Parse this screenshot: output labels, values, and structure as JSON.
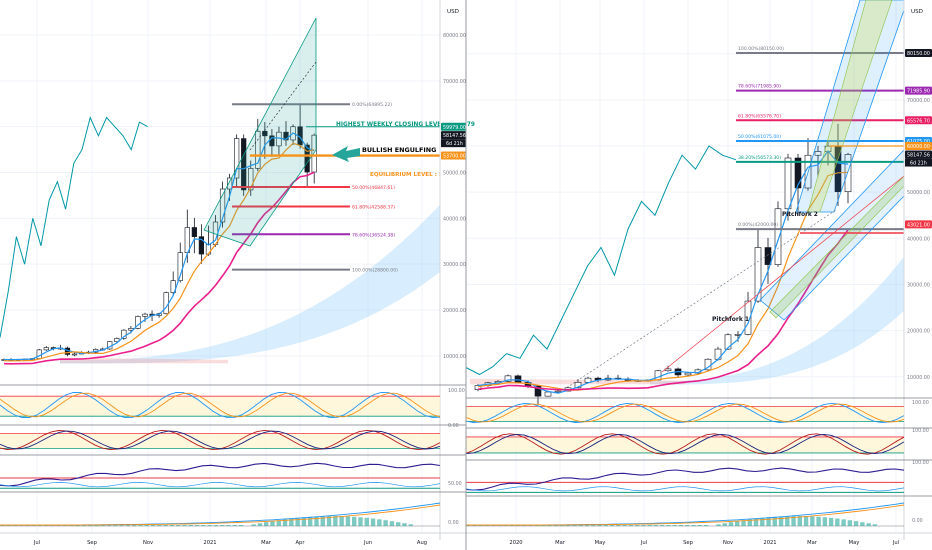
{
  "chart_data": [
    {
      "type": "candlestick",
      "name_context": "Left panel — BTC/USD weekly",
      "currency": "USD",
      "y_axis_ticks": [
        10000,
        20000,
        30000,
        40000,
        50000,
        60000,
        70000,
        80000
      ],
      "y_axis_tick_labels": [
        "10000.00",
        "20000.00",
        "30000.00",
        "40000.00",
        "50000.00",
        "60000.00",
        "70000.00",
        "80000.00"
      ],
      "x_axis_labels": [
        "Jul",
        "Sep",
        "Nov",
        "2021",
        "Mar",
        "Apr",
        "Jun",
        "Aug"
      ],
      "fib_levels": [
        {
          "label": "0.00%(64895.22)",
          "value": 64895.22,
          "color": "#787b86"
        },
        {
          "label": "50.00%(46847.61)",
          "value": 46847.61,
          "color": "#f23645"
        },
        {
          "label": "61.80%(42588.37)",
          "value": 42588.37,
          "color": "#f23645"
        },
        {
          "label": "78.60%(36524.38)",
          "value": 36524.38,
          "color": "#9c27b0"
        },
        {
          "label": "100.00%(28800.00)",
          "value": 28800,
          "color": "#787b86"
        }
      ],
      "annotations": [
        {
          "text": "HIGHEST WEEKLY CLOSING LEVEL  @ 59979",
          "color": "#089981",
          "value": 59979
        },
        {
          "text": "BULLISH ENGULFING",
          "color": "#000000"
        },
        {
          "text": "EQUILIBRIUM LEVEL : 53700",
          "color": "#f7931a",
          "value": 53700
        }
      ],
      "price_labels": [
        {
          "text": "59979.00",
          "color": "#089981",
          "value": 59979
        },
        {
          "text": "58147.56",
          "color": "#ffffff",
          "value": 58147.56
        },
        {
          "text": "6d 21h",
          "color": "#ffffff"
        },
        {
          "text": "53700.00",
          "color": "#f7931a",
          "value": 53700
        }
      ],
      "indicator_scales": [
        {
          "label": "100.00"
        },
        {
          "label": "0.00"
        },
        {
          "label": "50.00"
        },
        {
          "label": "0.00"
        }
      ],
      "candles": [
        {
          "o": 9100,
          "h": 9400,
          "l": 8900,
          "c": 9200
        },
        {
          "o": 9200,
          "h": 9500,
          "l": 9000,
          "c": 9150
        },
        {
          "o": 9150,
          "h": 9300,
          "l": 8900,
          "c": 9250
        },
        {
          "o": 9250,
          "h": 9400,
          "l": 9100,
          "c": 9300
        },
        {
          "o": 9300,
          "h": 9500,
          "l": 9200,
          "c": 9400
        },
        {
          "o": 9400,
          "h": 11500,
          "l": 9300,
          "c": 11300
        },
        {
          "o": 11300,
          "h": 12100,
          "l": 11100,
          "c": 11800
        },
        {
          "o": 11800,
          "h": 12000,
          "l": 11200,
          "c": 11600
        },
        {
          "o": 11600,
          "h": 12400,
          "l": 11300,
          "c": 11700
        },
        {
          "o": 11700,
          "h": 12000,
          "l": 9900,
          "c": 10300
        },
        {
          "o": 10300,
          "h": 10900,
          "l": 9900,
          "c": 10400
        },
        {
          "o": 10400,
          "h": 11000,
          "l": 10300,
          "c": 10700
        },
        {
          "o": 10700,
          "h": 11100,
          "l": 10400,
          "c": 10800
        },
        {
          "o": 10800,
          "h": 11600,
          "l": 10600,
          "c": 11400
        },
        {
          "o": 11400,
          "h": 11800,
          "l": 11200,
          "c": 11500
        },
        {
          "o": 11500,
          "h": 13200,
          "l": 11300,
          "c": 13100
        },
        {
          "o": 13100,
          "h": 14000,
          "l": 12800,
          "c": 13800
        },
        {
          "o": 13800,
          "h": 15800,
          "l": 13500,
          "c": 15600
        },
        {
          "o": 15600,
          "h": 16500,
          "l": 14900,
          "c": 16000
        },
        {
          "o": 16000,
          "h": 18800,
          "l": 15800,
          "c": 18600
        },
        {
          "o": 18600,
          "h": 19400,
          "l": 17400,
          "c": 19100
        },
        {
          "o": 19100,
          "h": 19900,
          "l": 17600,
          "c": 18800
        },
        {
          "o": 18800,
          "h": 19400,
          "l": 18300,
          "c": 19200
        },
        {
          "o": 19200,
          "h": 24000,
          "l": 19000,
          "c": 23800
        },
        {
          "o": 23800,
          "h": 28400,
          "l": 23200,
          "c": 26400
        },
        {
          "o": 26400,
          "h": 34700,
          "l": 26000,
          "c": 32500
        },
        {
          "o": 32500,
          "h": 41900,
          "l": 30300,
          "c": 38000
        },
        {
          "o": 38000,
          "h": 40100,
          "l": 32400,
          "c": 36000
        },
        {
          "o": 36000,
          "h": 38700,
          "l": 30100,
          "c": 32200
        },
        {
          "o": 32200,
          "h": 38400,
          "l": 31800,
          "c": 34300
        },
        {
          "o": 34300,
          "h": 40700,
          "l": 33800,
          "c": 39200
        },
        {
          "o": 39200,
          "h": 48000,
          "l": 38000,
          "c": 46400
        },
        {
          "o": 46400,
          "h": 49700,
          "l": 43800,
          "c": 48800
        },
        {
          "o": 48800,
          "h": 58300,
          "l": 47000,
          "c": 57400
        },
        {
          "o": 57400,
          "h": 58300,
          "l": 44900,
          "c": 46200
        },
        {
          "o": 46200,
          "h": 52600,
          "l": 44900,
          "c": 50900
        },
        {
          "o": 50900,
          "h": 61700,
          "l": 50300,
          "c": 59000
        },
        {
          "o": 59000,
          "h": 61000,
          "l": 53000,
          "c": 58000
        },
        {
          "o": 58000,
          "h": 59500,
          "l": 53400,
          "c": 55800
        },
        {
          "o": 55800,
          "h": 60000,
          "l": 53800,
          "c": 58800
        },
        {
          "o": 58800,
          "h": 61200,
          "l": 55800,
          "c": 57100
        },
        {
          "o": 57100,
          "h": 60500,
          "l": 56000,
          "c": 59979
        },
        {
          "o": 59979,
          "h": 64800,
          "l": 55200,
          "c": 56000
        },
        {
          "o": 56000,
          "h": 56500,
          "l": 47000,
          "c": 50100
        },
        {
          "o": 50100,
          "h": 58500,
          "l": 47600,
          "c": 58147.56
        }
      ]
    },
    {
      "type": "candlestick",
      "name_context": "Right panel — BTC/USD 2-week",
      "currency": "USD",
      "y_axis_ticks": [
        10000,
        20000,
        30000,
        40000,
        50000,
        60000,
        70000,
        80000
      ],
      "y_axis_tick_labels": [
        "10000.00",
        "20000.00",
        "30000.00",
        "40000.00",
        "50000.00",
        "60000.00",
        "70000.00",
        "80000.00"
      ],
      "x_axis_labels": [
        "2020",
        "Mar",
        "May",
        "Jul",
        "Sep",
        "Nov",
        "2021",
        "Mar",
        "May",
        "Jul"
      ],
      "fib_levels": [
        {
          "label": "100.00%(80150.00)",
          "value": 80150,
          "color": "#787b86"
        },
        {
          "label": "78.60%(71985.90)",
          "value": 71985.9,
          "color": "#9c27b0"
        },
        {
          "label": "61.80%(65576.70)",
          "value": 65576.7,
          "color": "#e91e63"
        },
        {
          "label": "50.00%(61075.00)",
          "value": 61075,
          "color": "#2196f3"
        },
        {
          "label": "38.20%(56573.30)",
          "value": 56573.3,
          "color": "#089981"
        },
        {
          "label": "0.00%(42000.00)",
          "value": 42000,
          "color": "#787b86"
        }
      ],
      "annotations": [
        {
          "text": "Pitchfork 2"
        },
        {
          "text": "Pitchfork 1"
        }
      ],
      "price_labels": [
        {
          "text": "80150.00",
          "color": "#131722",
          "value": 80150
        },
        {
          "text": "71985.90",
          "color": "#9c27b0",
          "value": 71985.9
        },
        {
          "text": "65576.70",
          "color": "#e91e63",
          "value": 65576.7
        },
        {
          "text": "61075.00",
          "color": "#2196f3",
          "value": 61075
        },
        {
          "text": "60000.00",
          "color": "#f7931a",
          "value": 60000
        },
        {
          "text": "58147.56",
          "color": "#ffffff",
          "value": 58147.56
        },
        {
          "text": "6d 21h",
          "color": "#ffffff"
        },
        {
          "text": "43021.00",
          "color": "#f23645",
          "value": 43021
        }
      ],
      "indicator_scales": [
        {
          "label": "100.00"
        },
        {
          "label": "100.00"
        },
        {
          "label": "100.00"
        },
        {
          "label": "0.00"
        }
      ],
      "candles": [
        {
          "o": 7200,
          "h": 8400,
          "l": 6900,
          "c": 8100
        },
        {
          "o": 8100,
          "h": 8900,
          "l": 7800,
          "c": 8700
        },
        {
          "o": 8700,
          "h": 9300,
          "l": 8400,
          "c": 9000
        },
        {
          "o": 9000,
          "h": 10500,
          "l": 8800,
          "c": 10200
        },
        {
          "o": 10200,
          "h": 10500,
          "l": 8600,
          "c": 8800
        },
        {
          "o": 8800,
          "h": 9200,
          "l": 7600,
          "c": 8000
        },
        {
          "o": 8000,
          "h": 8100,
          "l": 3900,
          "c": 5800
        },
        {
          "o": 5800,
          "h": 7000,
          "l": 5700,
          "c": 6700
        },
        {
          "o": 6700,
          "h": 7300,
          "l": 6500,
          "c": 6900
        },
        {
          "o": 6900,
          "h": 7800,
          "l": 6800,
          "c": 7600
        },
        {
          "o": 7600,
          "h": 9500,
          "l": 7500,
          "c": 8800
        },
        {
          "o": 8800,
          "h": 10000,
          "l": 8600,
          "c": 9700
        },
        {
          "o": 9700,
          "h": 10000,
          "l": 8800,
          "c": 9300
        },
        {
          "o": 9300,
          "h": 10400,
          "l": 9100,
          "c": 9700
        },
        {
          "o": 9700,
          "h": 10400,
          "l": 9300,
          "c": 9500
        },
        {
          "o": 9500,
          "h": 9900,
          "l": 8900,
          "c": 9200
        },
        {
          "o": 9200,
          "h": 9500,
          "l": 8900,
          "c": 9100
        },
        {
          "o": 9100,
          "h": 9400,
          "l": 8900,
          "c": 9300
        },
        {
          "o": 9300,
          "h": 11500,
          "l": 9200,
          "c": 11300
        },
        {
          "o": 11300,
          "h": 12400,
          "l": 11100,
          "c": 11700
        },
        {
          "o": 11700,
          "h": 12000,
          "l": 9900,
          "c": 10400
        },
        {
          "o": 10400,
          "h": 11100,
          "l": 10200,
          "c": 10800
        },
        {
          "o": 10800,
          "h": 11800,
          "l": 10600,
          "c": 11500
        },
        {
          "o": 11500,
          "h": 14000,
          "l": 11300,
          "c": 13800
        },
        {
          "o": 13800,
          "h": 16500,
          "l": 13500,
          "c": 16000
        },
        {
          "o": 16000,
          "h": 19400,
          "l": 15800,
          "c": 19100
        },
        {
          "o": 19100,
          "h": 19900,
          "l": 17600,
          "c": 19200
        },
        {
          "o": 19200,
          "h": 28400,
          "l": 19000,
          "c": 26400
        },
        {
          "o": 26400,
          "h": 41900,
          "l": 26000,
          "c": 38000
        },
        {
          "o": 38000,
          "h": 40100,
          "l": 30100,
          "c": 34300
        },
        {
          "o": 34300,
          "h": 48000,
          "l": 33800,
          "c": 46400
        },
        {
          "o": 46400,
          "h": 58300,
          "l": 43800,
          "c": 57400
        },
        {
          "o": 57400,
          "h": 58300,
          "l": 44900,
          "c": 50900
        },
        {
          "o": 50900,
          "h": 61700,
          "l": 50300,
          "c": 58000
        },
        {
          "o": 58000,
          "h": 60000,
          "l": 53400,
          "c": 58800
        },
        {
          "o": 58800,
          "h": 61200,
          "l": 55800,
          "c": 59979
        },
        {
          "o": 59979,
          "h": 64800,
          "l": 47000,
          "c": 50100
        },
        {
          "o": 50100,
          "h": 58500,
          "l": 47600,
          "c": 58147.56
        }
      ]
    }
  ]
}
